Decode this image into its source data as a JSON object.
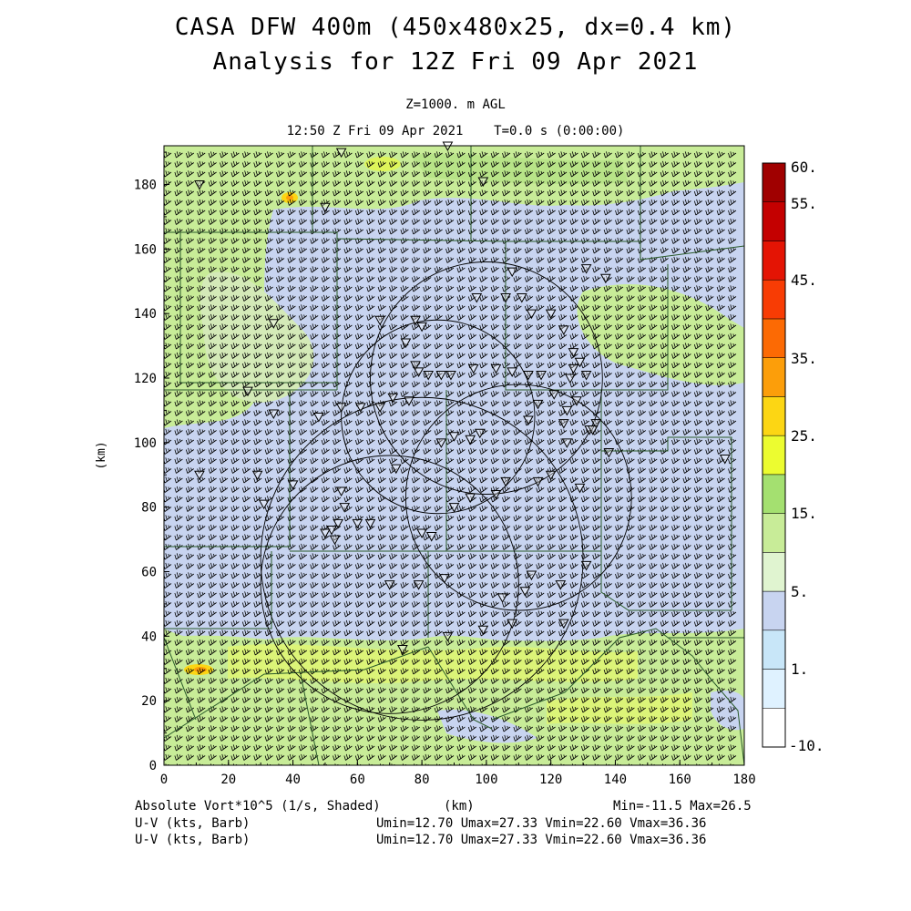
{
  "title": {
    "line1": "CASA DFW 400m (450x480x25, dx=0.4 km)",
    "line2": "Analysis for 12Z Fri 09 Apr 2021"
  },
  "subtitle": {
    "level": "Z=1000. m AGL",
    "time": "12:50 Z Fri 09 Apr 2021    T=0.0 s (0:00:00)"
  },
  "axes": {
    "x_label": "(km)",
    "y_label": "(km)",
    "x_range": [
      0,
      180
    ],
    "y_range": [
      0,
      192
    ],
    "x_ticks": [
      "0",
      "20",
      "40",
      "60",
      "80",
      "100",
      "120",
      "140",
      "160",
      "180"
    ],
    "y_ticks": [
      "0",
      "20",
      "40",
      "60",
      "80",
      "100",
      "120",
      "140",
      "160",
      "180"
    ]
  },
  "colorbar": {
    "labels": [
      "60.",
      "55.",
      "45.",
      "35.",
      "25.",
      "15.",
      "5.",
      "1.",
      "-10."
    ],
    "colors": [
      "#ffffff",
      "#dff2ff",
      "#c8e6f8",
      "#c8d4f0",
      "#e0f4d0",
      "#c8ec98",
      "#a4e070",
      "#ecfc30",
      "#fcd614",
      "#fc9e0a",
      "#fc6a04",
      "#f83c04",
      "#e41404",
      "#c40000",
      "#a00000"
    ]
  },
  "footer": {
    "field_label": "Absolute Vort*10^5 (1/s, Shaded)",
    "x_unit": "(km)",
    "minmax": "Min=-11.5 Max=26.5",
    "wind1_label": "U-V (kts, Barb)",
    "wind1_stats": "Umin=12.70 Umax=27.33 Vmin=22.60 Vmax=36.36",
    "wind2_label": "U-V (kts, Barb)",
    "wind2_stats": "Umin=12.70 Umax=27.33 Vmin=22.60 Vmax=36.36"
  },
  "radar_rings": [
    {
      "x": 100,
      "y": 120,
      "r": 36
    },
    {
      "x": 85,
      "y": 108,
      "r": 30
    },
    {
      "x": 80,
      "y": 64,
      "r": 50
    },
    {
      "x": 70,
      "y": 56,
      "r": 40
    },
    {
      "x": 110,
      "y": 83,
      "r": 35
    }
  ],
  "stations": [
    [
      11,
      180
    ],
    [
      55,
      190
    ],
    [
      88,
      192
    ],
    [
      50,
      173
    ],
    [
      99,
      181
    ],
    [
      67,
      138
    ],
    [
      34,
      137
    ],
    [
      78,
      138
    ],
    [
      80,
      136
    ],
    [
      97,
      145
    ],
    [
      106,
      145
    ],
    [
      108,
      153
    ],
    [
      111,
      145
    ],
    [
      114,
      140
    ],
    [
      120,
      140
    ],
    [
      124,
      135
    ],
    [
      127,
      128
    ],
    [
      137,
      151
    ],
    [
      131,
      154
    ],
    [
      75,
      131
    ],
    [
      78,
      124
    ],
    [
      79,
      122
    ],
    [
      82,
      121
    ],
    [
      86,
      121
    ],
    [
      89,
      121
    ],
    [
      96,
      123
    ],
    [
      103,
      123
    ],
    [
      108,
      122
    ],
    [
      113,
      121
    ],
    [
      117,
      121
    ],
    [
      126,
      120
    ],
    [
      127,
      123
    ],
    [
      129,
      125
    ],
    [
      121,
      115
    ],
    [
      116,
      112
    ],
    [
      113,
      107
    ],
    [
      124,
      106
    ],
    [
      132,
      104
    ],
    [
      134,
      106
    ],
    [
      125,
      110
    ],
    [
      128,
      113
    ],
    [
      131,
      121
    ],
    [
      125,
      100
    ],
    [
      138,
      97
    ],
    [
      174,
      95
    ],
    [
      76,
      113
    ],
    [
      71,
      114
    ],
    [
      67,
      111
    ],
    [
      61,
      111
    ],
    [
      55,
      111
    ],
    [
      48,
      108
    ],
    [
      34,
      109
    ],
    [
      26,
      116
    ],
    [
      11,
      90
    ],
    [
      29,
      90
    ],
    [
      31,
      81
    ],
    [
      40,
      87
    ],
    [
      55,
      85
    ],
    [
      56,
      80
    ],
    [
      60,
      75
    ],
    [
      64,
      75
    ],
    [
      54,
      75
    ],
    [
      52,
      73
    ],
    [
      50,
      72
    ],
    [
      53,
      70
    ],
    [
      80,
      72
    ],
    [
      83,
      71
    ],
    [
      90,
      80
    ],
    [
      95,
      83
    ],
    [
      103,
      84
    ],
    [
      106,
      88
    ],
    [
      116,
      88
    ],
    [
      120,
      90
    ],
    [
      129,
      86
    ],
    [
      133,
      104
    ],
    [
      98,
      103
    ],
    [
      95,
      101
    ],
    [
      90,
      102
    ],
    [
      86,
      100
    ],
    [
      72,
      92
    ],
    [
      70,
      56
    ],
    [
      79,
      56
    ],
    [
      87,
      58
    ],
    [
      105,
      52
    ],
    [
      112,
      54
    ],
    [
      114,
      59
    ],
    [
      123,
      56
    ],
    [
      131,
      62
    ],
    [
      124,
      44
    ],
    [
      74,
      36
    ],
    [
      88,
      40
    ],
    [
      99,
      42
    ],
    [
      108,
      44
    ]
  ]
}
